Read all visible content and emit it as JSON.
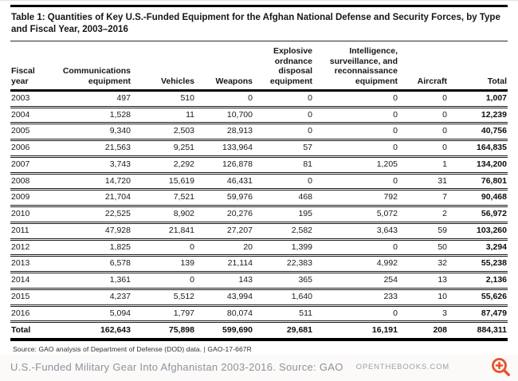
{
  "chart_data": {
    "type": "table",
    "title": "Table 1: Quantities of Key U.S.-Funded Equipment for the Afghan National Defense and Security Forces, by Type and Fiscal Year, 2003–2016",
    "columns": [
      "Fiscal year",
      "Communications equipment",
      "Vehicles",
      "Weapons",
      "Explosive ordnance disposal equipment",
      "Intelligence, surveillance, and reconnaissance equipment",
      "Aircraft",
      "Total"
    ],
    "rows": [
      [
        "2003",
        "497",
        "510",
        "0",
        "0",
        "0",
        "0",
        "1,007"
      ],
      [
        "2004",
        "1,528",
        "11",
        "10,700",
        "0",
        "0",
        "0",
        "12,239"
      ],
      [
        "2005",
        "9,340",
        "2,503",
        "28,913",
        "0",
        "0",
        "0",
        "40,756"
      ],
      [
        "2006",
        "21,563",
        "9,251",
        "133,964",
        "57",
        "0",
        "0",
        "164,835"
      ],
      [
        "2007",
        "3,743",
        "2,292",
        "126,878",
        "81",
        "1,205",
        "1",
        "134,200"
      ],
      [
        "2008",
        "14,720",
        "15,619",
        "46,431",
        "0",
        "0",
        "31",
        "76,801"
      ],
      [
        "2009",
        "21,704",
        "7,521",
        "59,976",
        "468",
        "792",
        "7",
        "90,468"
      ],
      [
        "2010",
        "22,525",
        "8,902",
        "20,276",
        "195",
        "5,072",
        "2",
        "56,972"
      ],
      [
        "2011",
        "47,928",
        "21,841",
        "27,207",
        "2,582",
        "3,643",
        "59",
        "103,260"
      ],
      [
        "2012",
        "1,825",
        "0",
        "20",
        "1,399",
        "0",
        "50",
        "3,294"
      ],
      [
        "2013",
        "6,578",
        "139",
        "21,114",
        "22,383",
        "4,992",
        "32",
        "55,238"
      ],
      [
        "2014",
        "1,361",
        "0",
        "143",
        "365",
        "254",
        "13",
        "2,136"
      ],
      [
        "2015",
        "4,237",
        "5,512",
        "43,994",
        "1,640",
        "233",
        "10",
        "55,626"
      ],
      [
        "2016",
        "5,094",
        "1,797",
        "80,074",
        "511",
        "0",
        "3",
        "87,479"
      ]
    ],
    "total_row": [
      "Total",
      "162,643",
      "75,898",
      "599,690",
      "29,681",
      "16,191",
      "208",
      "884,311"
    ],
    "source_note": "Source: GAO analysis of Department of Defense (DOD) data.  |  GAO-17-667R"
  },
  "footer": {
    "caption": "U.S.-Funded Military Gear Into Afghanistan 2003-2016. Source: GAO",
    "watermark": "OPENTHEBOOKS.COM",
    "zoom_icon_color": "#e8502b"
  }
}
